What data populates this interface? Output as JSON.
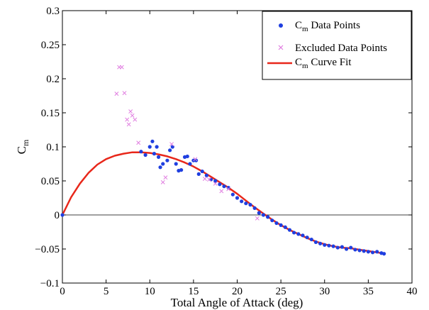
{
  "chart_data": {
    "type": "scatter",
    "title": "",
    "xlabel": "Total Angle of Attack (deg)",
    "ylabel": "C",
    "ylabel_subscript": "m",
    "xlim": [
      0,
      40
    ],
    "ylim": [
      -0.1,
      0.3
    ],
    "xticks": [
      0,
      5,
      10,
      15,
      20,
      25,
      30,
      35,
      40
    ],
    "yticks": [
      -0.1,
      -0.05,
      0,
      0.05,
      0.1,
      0.15,
      0.2,
      0.25,
      0.3
    ],
    "xtick_labels": [
      "0",
      "5",
      "10",
      "15",
      "20",
      "25",
      "30",
      "35",
      "40"
    ],
    "ytick_labels": [
      "−0.1",
      "−0.05",
      "0",
      "0.05",
      "0.1",
      "0.15",
      "0.2",
      "0.25",
      "0.3"
    ],
    "grid": false,
    "legend_position": "top-right",
    "zero_line": true,
    "series": [
      {
        "name": "C",
        "name_subscript": "m",
        "name_suffix": " Data Points",
        "kind": "points",
        "marker": "dot",
        "color": "#1f3fe0",
        "x": [
          0.0,
          9.0,
          9.5,
          10.0,
          10.3,
          10.5,
          10.8,
          11.0,
          11.2,
          11.5,
          12.0,
          12.3,
          12.6,
          13.0,
          13.3,
          13.6,
          14.0,
          14.3,
          14.6,
          15.0,
          15.3,
          15.6,
          16.0,
          16.5,
          17.0,
          17.5,
          18.0,
          18.5,
          19.0,
          19.5,
          20.0,
          20.5,
          21.0,
          21.5,
          22.0,
          22.5,
          23.0,
          23.5,
          24.0,
          24.5,
          25.0,
          25.5,
          26.0,
          26.5,
          27.0,
          27.5,
          28.0,
          28.5,
          29.0,
          29.5,
          30.0,
          30.5,
          31.0,
          31.5,
          32.0,
          32.5,
          33.0,
          33.5,
          34.0,
          34.5,
          35.0,
          35.5,
          36.0,
          36.5,
          36.8
        ],
        "y": [
          0.0,
          0.093,
          0.088,
          0.1,
          0.108,
          0.09,
          0.1,
          0.085,
          0.07,
          0.075,
          0.08,
          0.095,
          0.1,
          0.075,
          0.065,
          0.066,
          0.085,
          0.086,
          0.075,
          0.08,
          0.08,
          0.06,
          0.064,
          0.058,
          0.052,
          0.05,
          0.045,
          0.042,
          0.04,
          0.03,
          0.025,
          0.02,
          0.017,
          0.015,
          0.01,
          0.003,
          0.0,
          -0.003,
          -0.008,
          -0.012,
          -0.015,
          -0.018,
          -0.022,
          -0.026,
          -0.028,
          -0.03,
          -0.033,
          -0.036,
          -0.04,
          -0.042,
          -0.044,
          -0.045,
          -0.046,
          -0.048,
          -0.047,
          -0.05,
          -0.048,
          -0.051,
          -0.052,
          -0.053,
          -0.054,
          -0.055,
          -0.054,
          -0.056,
          -0.057
        ]
      },
      {
        "name": "Excluded Data Points",
        "kind": "points",
        "marker": "x",
        "color": "#e07de0",
        "x": [
          6.2,
          6.5,
          6.8,
          7.1,
          7.4,
          7.6,
          7.8,
          8.0,
          8.3,
          8.7,
          11.5,
          11.8,
          12.5,
          15.2,
          16.3,
          16.8,
          17.5,
          18.2,
          19.0,
          22.3
        ],
        "y": [
          0.178,
          0.217,
          0.217,
          0.179,
          0.14,
          0.133,
          0.152,
          0.146,
          0.14,
          0.106,
          0.048,
          0.055,
          0.104,
          0.082,
          0.053,
          0.052,
          0.046,
          0.035,
          0.038,
          -0.005
        ]
      },
      {
        "name": "C",
        "name_subscript": "m",
        "name_suffix": " Curve Fit",
        "kind": "line",
        "color": "#e8271a",
        "x": [
          0,
          1,
          2,
          3,
          4,
          5,
          6,
          7,
          8,
          9,
          10,
          11,
          12,
          13,
          14,
          15,
          16,
          17,
          18,
          19,
          20,
          21,
          22,
          23,
          24,
          25,
          26,
          27,
          28,
          29,
          30,
          31,
          32,
          33,
          34,
          35,
          36,
          37
        ],
        "y": [
          0.0,
          0.026,
          0.046,
          0.062,
          0.074,
          0.082,
          0.087,
          0.09,
          0.092,
          0.092,
          0.091,
          0.089,
          0.086,
          0.082,
          0.077,
          0.071,
          0.064,
          0.056,
          0.048,
          0.04,
          0.031,
          0.021,
          0.011,
          0.002,
          -0.007,
          -0.015,
          -0.022,
          -0.028,
          -0.034,
          -0.039,
          -0.043,
          -0.046,
          -0.048,
          -0.049,
          -0.051,
          -0.053,
          -0.055,
          -0.057
        ]
      }
    ]
  }
}
